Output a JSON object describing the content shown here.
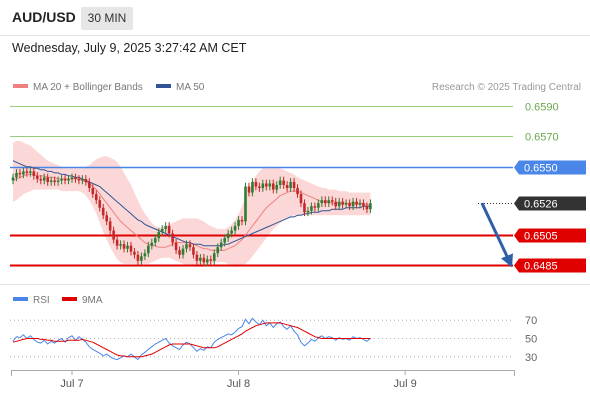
{
  "header": {
    "symbol": "AUD/USD",
    "timeframe": "30 MIN",
    "timestamp": "Wednesday, July 9, 2025 3:27:42 AM CET"
  },
  "colors": {
    "candle_up": "#2e7d32",
    "candle_down": "#c62828",
    "ma20": "#f08080",
    "bollinger_fill": "#f9c9c9",
    "ma50": "#2f5597",
    "resistance_blue": "#4a86e8",
    "support_red": "#e00000",
    "target_green": "#6aa84f",
    "rsi": "#4a86e8",
    "rsi_ma": "#e00000",
    "arrow": "#2f5fa7"
  },
  "chart_data": [
    {
      "type": "candlestick",
      "title": "",
      "legend": [
        "MA 20 + Bollinger Bands",
        "MA 50"
      ],
      "legend_position": "top-left",
      "copyright": "Research © 2025 Trading Central",
      "x_tick_labels": [
        "Jul 7",
        "Jul 8",
        "Jul 9"
      ],
      "x_tick_index": [
        17,
        65,
        113
      ],
      "ylim": [
        0.6478,
        0.6598
      ],
      "levels": [
        {
          "label": "0.6590",
          "value": 0.659,
          "kind": "target"
        },
        {
          "label": "0.6570",
          "value": 0.657,
          "kind": "target"
        },
        {
          "label": "0.6550",
          "value": 0.655,
          "kind": "resistance"
        },
        {
          "label": "0.6526",
          "value": 0.6526,
          "kind": "current"
        },
        {
          "label": "0.6505",
          "value": 0.6505,
          "kind": "support"
        },
        {
          "label": "0.6485",
          "value": 0.6485,
          "kind": "support"
        }
      ],
      "forecast_arrow": {
        "from_value": 0.6526,
        "to_value": 0.6485
      },
      "close": [
        0.6543,
        0.6546,
        0.6545,
        0.6547,
        0.6546,
        0.6547,
        0.6544,
        0.6542,
        0.6541,
        0.6543,
        0.654,
        0.6541,
        0.654,
        0.6541,
        0.6542,
        0.6541,
        0.6542,
        0.6543,
        0.6542,
        0.6541,
        0.6542,
        0.654,
        0.6536,
        0.6532,
        0.6528,
        0.6523,
        0.6518,
        0.6514,
        0.6508,
        0.6502,
        0.6498,
        0.6499,
        0.6496,
        0.6498,
        0.6494,
        0.6492,
        0.6488,
        0.6491,
        0.6493,
        0.6498,
        0.65,
        0.6503,
        0.6507,
        0.6509,
        0.6511,
        0.6506,
        0.65,
        0.6495,
        0.6492,
        0.6496,
        0.6499,
        0.6497,
        0.6492,
        0.6488,
        0.649,
        0.6487,
        0.6489,
        0.6488,
        0.6493,
        0.6497,
        0.65,
        0.6503,
        0.6506,
        0.6508,
        0.6511,
        0.6515,
        0.6514,
        0.6537,
        0.6533,
        0.654,
        0.6537,
        0.6536,
        0.6539,
        0.6537,
        0.6539,
        0.6535,
        0.6538,
        0.6541,
        0.6538,
        0.6536,
        0.654,
        0.6536,
        0.6532,
        0.6526,
        0.652,
        0.6521,
        0.6524,
        0.6523,
        0.6526,
        0.6528,
        0.6526,
        0.6528,
        0.6527,
        0.6524,
        0.6527,
        0.6525,
        0.6526,
        0.6524,
        0.6527,
        0.6525,
        0.6526,
        0.6524,
        0.6522,
        0.6526
      ],
      "ma20": [
        0.6541,
        0.6542,
        0.6543,
        0.6544,
        0.6545,
        0.6545,
        0.6545,
        0.6544,
        0.6544,
        0.6544,
        0.6543,
        0.6543,
        0.6543,
        0.6542,
        0.6542,
        0.6542,
        0.6542,
        0.6542,
        0.6542,
        0.6542,
        0.6541,
        0.654,
        0.6539,
        0.6537,
        0.6535,
        0.6532,
        0.6529,
        0.6526,
        0.6523,
        0.652,
        0.6517,
        0.6514,
        0.6512,
        0.651,
        0.6508,
        0.6506,
        0.6504,
        0.6502,
        0.65,
        0.6499,
        0.6498,
        0.6498,
        0.6497,
        0.6497,
        0.6497,
        0.6498,
        0.6499,
        0.65,
        0.65,
        0.65,
        0.65,
        0.65,
        0.6499,
        0.6498,
        0.6497,
        0.6496,
        0.6496,
        0.6495,
        0.6495,
        0.6495,
        0.6495,
        0.6495,
        0.6496,
        0.6497,
        0.6498,
        0.65,
        0.6502,
        0.6505,
        0.6508,
        0.6511,
        0.6514,
        0.6517,
        0.652,
        0.6523,
        0.6525,
        0.6527,
        0.6529,
        0.6531,
        0.6532,
        0.6533,
        0.6534,
        0.6534,
        0.6534,
        0.6533,
        0.6532,
        0.6531,
        0.653,
        0.6529,
        0.6528,
        0.6527,
        0.6527,
        0.6527,
        0.6526,
        0.6526,
        0.6526,
        0.6526,
        0.6526,
        0.6526,
        0.6526,
        0.6526,
        0.6526,
        0.6526,
        0.6525,
        0.6525
      ],
      "ma50": [
        0.6554,
        0.6553,
        0.6552,
        0.6551,
        0.655,
        0.655,
        0.6549,
        0.6549,
        0.6548,
        0.6548,
        0.6547,
        0.6547,
        0.6546,
        0.6546,
        0.6545,
        0.6545,
        0.6544,
        0.6544,
        0.6543,
        0.6543,
        0.6542,
        0.6541,
        0.654,
        0.6539,
        0.6538,
        0.6537,
        0.6535,
        0.6533,
        0.6531,
        0.6529,
        0.6527,
        0.6525,
        0.6523,
        0.6521,
        0.6519,
        0.6517,
        0.6515,
        0.6514,
        0.6512,
        0.6511,
        0.651,
        0.6509,
        0.6508,
        0.6507,
        0.6506,
        0.6505,
        0.6504,
        0.6503,
        0.6502,
        0.6501,
        0.65,
        0.65,
        0.6499,
        0.6499,
        0.6499,
        0.6498,
        0.6498,
        0.6498,
        0.6498,
        0.6498,
        0.6498,
        0.6499,
        0.6499,
        0.65,
        0.6501,
        0.6502,
        0.6503,
        0.6504,
        0.6505,
        0.6506,
        0.6507,
        0.6508,
        0.6509,
        0.651,
        0.6511,
        0.6512,
        0.6513,
        0.6514,
        0.6515,
        0.6516,
        0.6517,
        0.6517,
        0.6518,
        0.6518,
        0.6519,
        0.6519,
        0.652,
        0.652,
        0.652,
        0.6521,
        0.6521,
        0.6521,
        0.6522,
        0.6522,
        0.6522,
        0.6522,
        0.6523,
        0.6523,
        0.6523,
        0.6523,
        0.6523,
        0.6524,
        0.6524,
        0.6524
      ],
      "bb_upper": [
        0.6566,
        0.6567,
        0.6567,
        0.6566,
        0.6565,
        0.6564,
        0.6562,
        0.656,
        0.6558,
        0.6556,
        0.6554,
        0.6553,
        0.6552,
        0.6551,
        0.655,
        0.6549,
        0.6549,
        0.6549,
        0.6549,
        0.6549,
        0.6549,
        0.655,
        0.6551,
        0.6553,
        0.6555,
        0.6556,
        0.6557,
        0.6557,
        0.6556,
        0.6555,
        0.6553,
        0.655,
        0.6546,
        0.6542,
        0.6538,
        0.6533,
        0.6528,
        0.6523,
        0.6519,
        0.6516,
        0.6513,
        0.6511,
        0.651,
        0.651,
        0.6511,
        0.6512,
        0.6513,
        0.6514,
        0.6515,
        0.6516,
        0.6516,
        0.6516,
        0.6516,
        0.6516,
        0.6515,
        0.6514,
        0.6512,
        0.6511,
        0.651,
        0.6509,
        0.6509,
        0.6509,
        0.651,
        0.6512,
        0.6515,
        0.6519,
        0.6524,
        0.653,
        0.6535,
        0.654,
        0.6544,
        0.6547,
        0.6549,
        0.655,
        0.655,
        0.655,
        0.655,
        0.6549,
        0.6548,
        0.6547,
        0.6546,
        0.6545,
        0.6543,
        0.6542,
        0.6541,
        0.654,
        0.6539,
        0.6538,
        0.6537,
        0.6536,
        0.6536,
        0.6535,
        0.6535,
        0.6535,
        0.6534,
        0.6534,
        0.6534,
        0.6533,
        0.6533,
        0.6533,
        0.6533,
        0.6533,
        0.6533,
        0.6533
      ],
      "bb_lower": [
        0.6527,
        0.6528,
        0.653,
        0.6532,
        0.6533,
        0.6534,
        0.6535,
        0.6535,
        0.6535,
        0.6535,
        0.6535,
        0.6535,
        0.6535,
        0.6535,
        0.6534,
        0.6534,
        0.6534,
        0.6534,
        0.6534,
        0.6534,
        0.6533,
        0.6531,
        0.6528,
        0.6524,
        0.6519,
        0.6513,
        0.6507,
        0.6502,
        0.6497,
        0.6493,
        0.6489,
        0.6487,
        0.6486,
        0.6486,
        0.6486,
        0.6486,
        0.6486,
        0.6486,
        0.6486,
        0.6486,
        0.6487,
        0.6488,
        0.6489,
        0.649,
        0.649,
        0.649,
        0.6489,
        0.6488,
        0.6487,
        0.6486,
        0.6485,
        0.6485,
        0.6484,
        0.6484,
        0.6484,
        0.6484,
        0.6485,
        0.6486,
        0.6487,
        0.6487,
        0.6487,
        0.6487,
        0.6486,
        0.6485,
        0.6484,
        0.6484,
        0.6485,
        0.6486,
        0.6488,
        0.6491,
        0.6494,
        0.6497,
        0.65,
        0.6503,
        0.6506,
        0.6509,
        0.6511,
        0.6513,
        0.6515,
        0.6516,
        0.6517,
        0.6518,
        0.6518,
        0.6518,
        0.6518,
        0.6518,
        0.6518,
        0.6518,
        0.6518,
        0.6518,
        0.6518,
        0.6518,
        0.6518,
        0.6518,
        0.6518,
        0.6518,
        0.6518,
        0.6518,
        0.6518,
        0.6518,
        0.6518,
        0.6518,
        0.6518,
        0.6518
      ]
    },
    {
      "type": "line",
      "title": "",
      "legend": [
        "RSI",
        "9MA"
      ],
      "legend_position": "top-left",
      "y_tick_labels": [
        "70",
        "50",
        "30"
      ],
      "ylim": [
        20,
        80
      ],
      "rsi": [
        47,
        52,
        51,
        54,
        50,
        53,
        49,
        46,
        45,
        48,
        44,
        47,
        45,
        48,
        50,
        46,
        51,
        53,
        48,
        52,
        49,
        46,
        41,
        38,
        36,
        34,
        31,
        33,
        30,
        28,
        27,
        29,
        31,
        30,
        33,
        30,
        27,
        32,
        35,
        38,
        41,
        44,
        46,
        48,
        50,
        45,
        42,
        40,
        38,
        43,
        46,
        44,
        40,
        36,
        39,
        37,
        41,
        40,
        46,
        49,
        51,
        53,
        55,
        54,
        57,
        61,
        63,
        71,
        66,
        72,
        68,
        65,
        70,
        64,
        67,
        62,
        66,
        68,
        63,
        60,
        64,
        58,
        54,
        46,
        42,
        45,
        49,
        47,
        51,
        53,
        50,
        52,
        51,
        48,
        51,
        49,
        50,
        48,
        52,
        50,
        51,
        49,
        47,
        50
      ],
      "rsi_ma": [
        46,
        47,
        48,
        49,
        50,
        50,
        50,
        50,
        49,
        49,
        48,
        48,
        47,
        47,
        47,
        47,
        48,
        48,
        48,
        48,
        49,
        48,
        47,
        46,
        44,
        42,
        40,
        38,
        36,
        34,
        32,
        31,
        31,
        30,
        30,
        30,
        30,
        30,
        31,
        32,
        33,
        35,
        37,
        39,
        41,
        43,
        44,
        44,
        44,
        44,
        44,
        44,
        43,
        42,
        41,
        40,
        40,
        40,
        40,
        41,
        43,
        45,
        47,
        49,
        51,
        53,
        55,
        58,
        60,
        62,
        64,
        65,
        66,
        67,
        67,
        67,
        67,
        67,
        66,
        65,
        64,
        63,
        62,
        60,
        58,
        56,
        54,
        52,
        51,
        50,
        50,
        50,
        50,
        50,
        50,
        50,
        50,
        50,
        50,
        50,
        50,
        50,
        50,
        50
      ]
    }
  ]
}
